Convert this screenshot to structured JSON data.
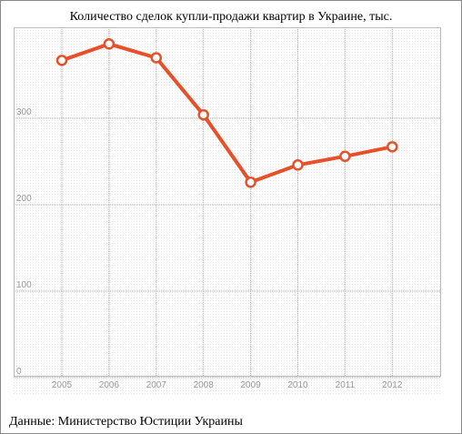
{
  "chart_data": {
    "type": "line",
    "title": "Количество сделок купли-продажи квартир в Украине, тыс.",
    "source": "Данные: Министерство Юстиции Украины",
    "categories": [
      "2005",
      "2006",
      "2007",
      "2008",
      "2009",
      "2010",
      "2011",
      "2012"
    ],
    "series": [
      {
        "name": "Количество сделок",
        "color": "#e8502a",
        "values": [
          367,
          386,
          370,
          304,
          226,
          246,
          256,
          267
        ]
      }
    ],
    "ylim": [
      0,
      400
    ],
    "yticks": [
      0,
      100,
      200,
      300
    ],
    "grid": true
  }
}
